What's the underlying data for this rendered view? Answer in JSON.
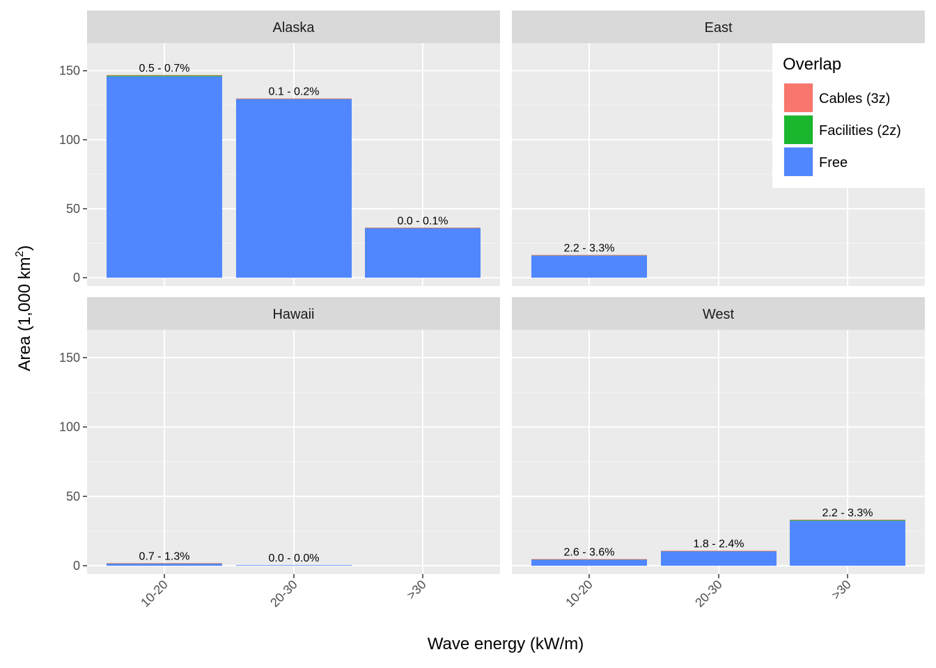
{
  "chart_data": {
    "type": "bar",
    "stacked": true,
    "faceted": true,
    "xlabel": "Wave energy (kW/m)",
    "ylabel": "Area (1,000 km²)",
    "ylabel_base": "Area (1,000 km",
    "ylabel_sup": "2",
    "ylabel_end": ")",
    "ylim": [
      -6,
      170
    ],
    "yticks": [
      0,
      50,
      100,
      150
    ],
    "categories": [
      "10-20",
      "20-30",
      ">30"
    ],
    "grid": true,
    "legend": {
      "title": "Overlap",
      "position": "top-right",
      "entries": [
        {
          "name": "Cables (3z)",
          "color": "#F8766D"
        },
        {
          "name": "Facilities (2z)",
          "color": "#1AB62E"
        },
        {
          "name": "Free",
          "color": "#5087FF"
        }
      ]
    },
    "facets": [
      {
        "name": "Alaska",
        "bars": [
          {
            "category": "10-20",
            "free": 145.9,
            "facilities": 0.8,
            "cables": 0.2,
            "label": "0.5 - 0.7%"
          },
          {
            "category": "20-30",
            "free": 129.6,
            "facilities": 0.2,
            "cables": 0.05,
            "label": "0.1 - 0.2%"
          },
          {
            "category": ">30",
            "free": 36.2,
            "facilities": 0.02,
            "cables": 0.01,
            "label": "0.0 - 0.1%"
          }
        ]
      },
      {
        "name": "East",
        "bars": [
          {
            "category": "10-20",
            "free": 16.0,
            "facilities": 0.4,
            "cables": 0.1,
            "label": "2.2 - 3.3%"
          }
        ]
      },
      {
        "name": "Hawaii",
        "bars": [
          {
            "category": "10-20",
            "free": 1.8,
            "facilities": 0.02,
            "cables": 0.01,
            "label": "0.7 - 1.3%"
          },
          {
            "category": "20-30",
            "free": 0.4,
            "facilities": 0.0,
            "cables": 0.0,
            "label": "0.0 - 0.0%"
          }
        ]
      },
      {
        "name": "West",
        "bars": [
          {
            "category": "10-20",
            "free": 4.6,
            "facilities": 0.15,
            "cables": 0.05,
            "label": "2.6 - 3.6%"
          },
          {
            "category": "20-30",
            "free": 10.5,
            "facilities": 0.2,
            "cables": 0.1,
            "label": "1.8 - 2.4%"
          },
          {
            "category": ">30",
            "free": 32.3,
            "facilities": 0.6,
            "cables": 0.3,
            "label": "2.2 - 3.3%"
          }
        ]
      }
    ]
  }
}
